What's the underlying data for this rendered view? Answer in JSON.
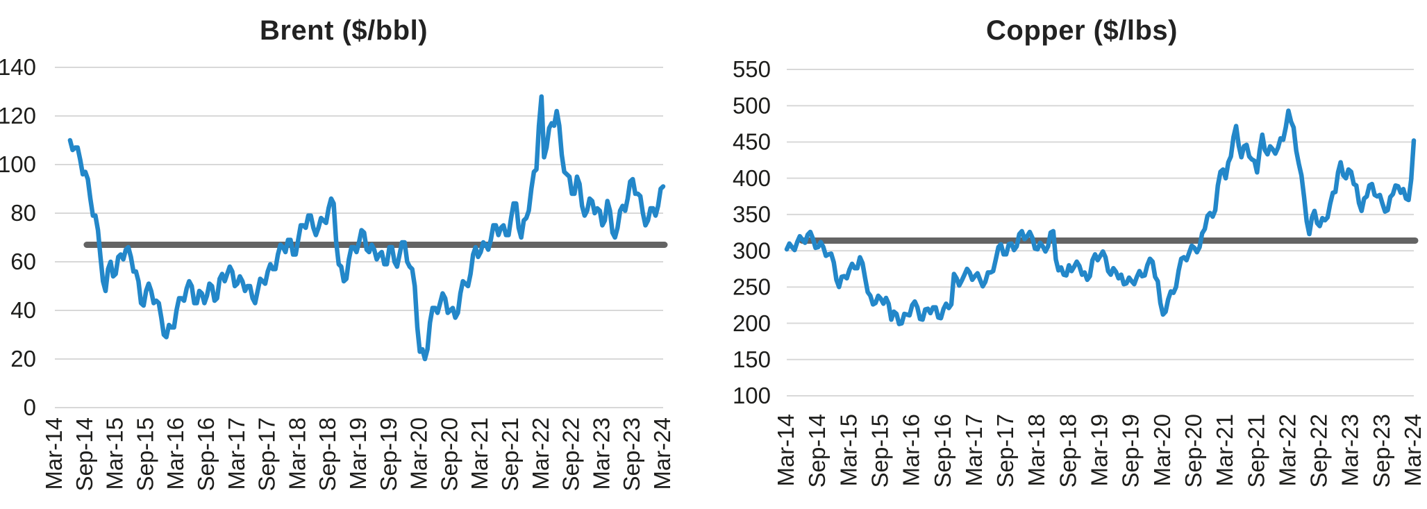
{
  "style": {
    "background": "#ffffff",
    "series_color": "#2387c9",
    "average_line_color": "#646464",
    "grid_color": "#d8d8d8",
    "text_color": "#1d1d1b",
    "title_color": "#222222"
  },
  "chart_data": [
    {
      "type": "line",
      "title": "Brent ($/bbl)",
      "ylabel": "",
      "xlabel": "",
      "grid": "horizontal",
      "legend": "none",
      "y_axis": {
        "min": 0,
        "max": 140,
        "tick_step": 20,
        "ticks": [
          140,
          120,
          100,
          80,
          60,
          40,
          20,
          0
        ]
      },
      "x_axis": {
        "tick_labels": [
          "Mar-14",
          "Sep-14",
          "Mar-15",
          "Sep-15",
          "Mar-16",
          "Sep-16",
          "Mar-17",
          "Sep-17",
          "Mar-18",
          "Sep-18",
          "Mar-19",
          "Sep-19",
          "Mar-20",
          "Sep-20",
          "Mar-21",
          "Sep-21",
          "Mar-22",
          "Sep-22",
          "Mar-23",
          "Sep-23",
          "Mar-24"
        ],
        "months_total": 120
      },
      "average_line": {
        "value": 67
      },
      "series": {
        "name": "Brent",
        "start_month_index": 3,
        "points_per_month": 2,
        "values": [
          110,
          106,
          107,
          107,
          102,
          96,
          97,
          94,
          86,
          79,
          79,
          73,
          62,
          52,
          48,
          57,
          60,
          54,
          55,
          62,
          63,
          61,
          65,
          66,
          62,
          56,
          56,
          52,
          43,
          42,
          48,
          51,
          48,
          43,
          44,
          43,
          37,
          30,
          29,
          34,
          33,
          33,
          40,
          45,
          45,
          44,
          49,
          52,
          50,
          43,
          43,
          48,
          47,
          43,
          46,
          51,
          50,
          44,
          45,
          53,
          55,
          52,
          55,
          58,
          56,
          50,
          51,
          54,
          52,
          48,
          50,
          50,
          45,
          43,
          48,
          53,
          52,
          51,
          56,
          59,
          57,
          57,
          63,
          67,
          66,
          64,
          69,
          69,
          63,
          63,
          69,
          75,
          75,
          74,
          79,
          79,
          74,
          71,
          74,
          78,
          77,
          76,
          82,
          86,
          84,
          68,
          59,
          58,
          52,
          53,
          61,
          66,
          66,
          64,
          68,
          73,
          72,
          65,
          64,
          67,
          65,
          61,
          63,
          64,
          59,
          59,
          66,
          66,
          60,
          58,
          63,
          68,
          68,
          60,
          58,
          57,
          50,
          33,
          23,
          24,
          20,
          24,
          35,
          41,
          41,
          39,
          43,
          47,
          45,
          39,
          40,
          41,
          37,
          39,
          47,
          52,
          51,
          50,
          55,
          63,
          66,
          62,
          64,
          68,
          67,
          65,
          69,
          75,
          75,
          71,
          74,
          75,
          71,
          71,
          78,
          84,
          84,
          74,
          70,
          77,
          78,
          81,
          90,
          97,
          98,
          116,
          128,
          103,
          107,
          115,
          117,
          116,
          122,
          116,
          104,
          97,
          96,
          95,
          88,
          88,
          95,
          92,
          83,
          79,
          81,
          86,
          85,
          80,
          82,
          81,
          75,
          77,
          85,
          81,
          72,
          70,
          74,
          81,
          83,
          81,
          86,
          93,
          94,
          88,
          88,
          87,
          80,
          75,
          77,
          82,
          82,
          79,
          83,
          90,
          91
        ]
      }
    },
    {
      "type": "line",
      "title": "Copper ($/lbs)",
      "ylabel": "",
      "xlabel": "",
      "grid": "horizontal",
      "legend": "none",
      "y_axis": {
        "min": 100,
        "max": 550,
        "tick_step": 50,
        "ticks": [
          550,
          500,
          450,
          400,
          350,
          300,
          250,
          200,
          150,
          100
        ]
      },
      "x_axis": {
        "tick_labels": [
          "Mar-14",
          "Sep-14",
          "Mar-15",
          "Sep-15",
          "Mar-16",
          "Sep-16",
          "Mar-17",
          "Sep-17",
          "Mar-18",
          "Sep-18",
          "Mar-19",
          "Sep-19",
          "Mar-20",
          "Sep-20",
          "Mar-21",
          "Sep-21",
          "Mar-22",
          "Sep-22",
          "Mar-23",
          "Sep-23",
          "Mar-24"
        ],
        "months_total": 120
      },
      "average_line": {
        "value": 314
      },
      "series": {
        "name": "Copper",
        "start_month_index": 0,
        "points_per_month": 2,
        "values": [
          302,
          310,
          305,
          301,
          312,
          320,
          315,
          311,
          322,
          326,
          317,
          304,
          305,
          312,
          305,
          293,
          295,
          296,
          284,
          260,
          250,
          264,
          265,
          262,
          274,
          282,
          276,
          276,
          291,
          283,
          262,
          243,
          238,
          226,
          228,
          238,
          234,
          227,
          235,
          227,
          205,
          216,
          213,
          199,
          200,
          213,
          212,
          211,
          225,
          230,
          222,
          206,
          205,
          219,
          220,
          214,
          222,
          222,
          208,
          207,
          220,
          227,
          221,
          226,
          268,
          262,
          252,
          259,
          267,
          275,
          270,
          260,
          265,
          269,
          260,
          251,
          257,
          270,
          270,
          272,
          288,
          305,
          309,
          295,
          295,
          309,
          310,
          301,
          306,
          323,
          327,
          316,
          320,
          326,
          318,
          303,
          302,
          311,
          306,
          299,
          306,
          325,
          327,
          288,
          273,
          277,
          267,
          266,
          280,
          272,
          278,
          285,
          279,
          267,
          270,
          260,
          265,
          287,
          295,
          287,
          293,
          299,
          291,
          272,
          267,
          276,
          271,
          262,
          267,
          254,
          255,
          263,
          258,
          254,
          264,
          272,
          265,
          266,
          280,
          289,
          285,
          264,
          258,
          228,
          212,
          216,
          233,
          244,
          242,
          250,
          273,
          289,
          291,
          287,
          297,
          307,
          304,
          298,
          305,
          324,
          330,
          348,
          352,
          347,
          356,
          390,
          409,
          412,
          400,
          422,
          430,
          457,
          472,
          445,
          429,
          444,
          446,
          430,
          426,
          424,
          408,
          438,
          460,
          439,
          433,
          444,
          440,
          434,
          442,
          455,
          453,
          470,
          493,
          478,
          470,
          438,
          420,
          404,
          374,
          341,
          323,
          346,
          355,
          338,
          334,
          345,
          342,
          346,
          365,
          380,
          381,
          408,
          422,
          404,
          400,
          412,
          409,
          392,
          390,
          366,
          355,
          372,
          375,
          390,
          392,
          377,
          375,
          377,
          365,
          354,
          356,
          374,
          378,
          390,
          389,
          380,
          385,
          372,
          370,
          398,
          452
        ]
      }
    }
  ]
}
